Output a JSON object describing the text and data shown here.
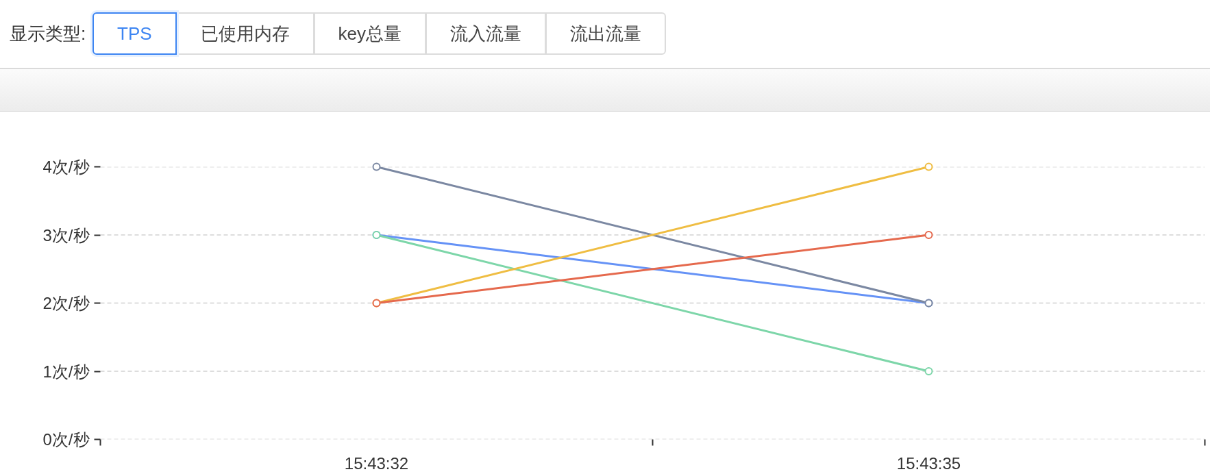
{
  "chart_data": {
    "type": "line",
    "categories": [
      "15:43:32",
      "15:43:35"
    ],
    "series": [
      {
        "color": "#6592f6",
        "values": [
          3,
          2
        ]
      },
      {
        "color": "#7dd6a9",
        "values": [
          3,
          1
        ]
      },
      {
        "color": "#7b88a2",
        "values": [
          4,
          2
        ]
      },
      {
        "color": "#efbd42",
        "values": [
          2,
          4
        ]
      },
      {
        "color": "#e5694d",
        "values": [
          2,
          3
        ]
      }
    ],
    "ylim": [
      0,
      4
    ],
    "yticks": [
      {
        "value": 0,
        "label": "0次/秒"
      },
      {
        "value": 1,
        "label": "1次/秒"
      },
      {
        "value": 2,
        "label": "2次/秒"
      },
      {
        "value": 3,
        "label": "3次/秒"
      },
      {
        "value": 4,
        "label": "4次/秒"
      }
    ],
    "grid": "y",
    "marker": "circle",
    "annotations": [
      "显示类型:",
      "TPS",
      "已使用内存",
      "key总量",
      "流入流量",
      "流出流量"
    ]
  }
}
